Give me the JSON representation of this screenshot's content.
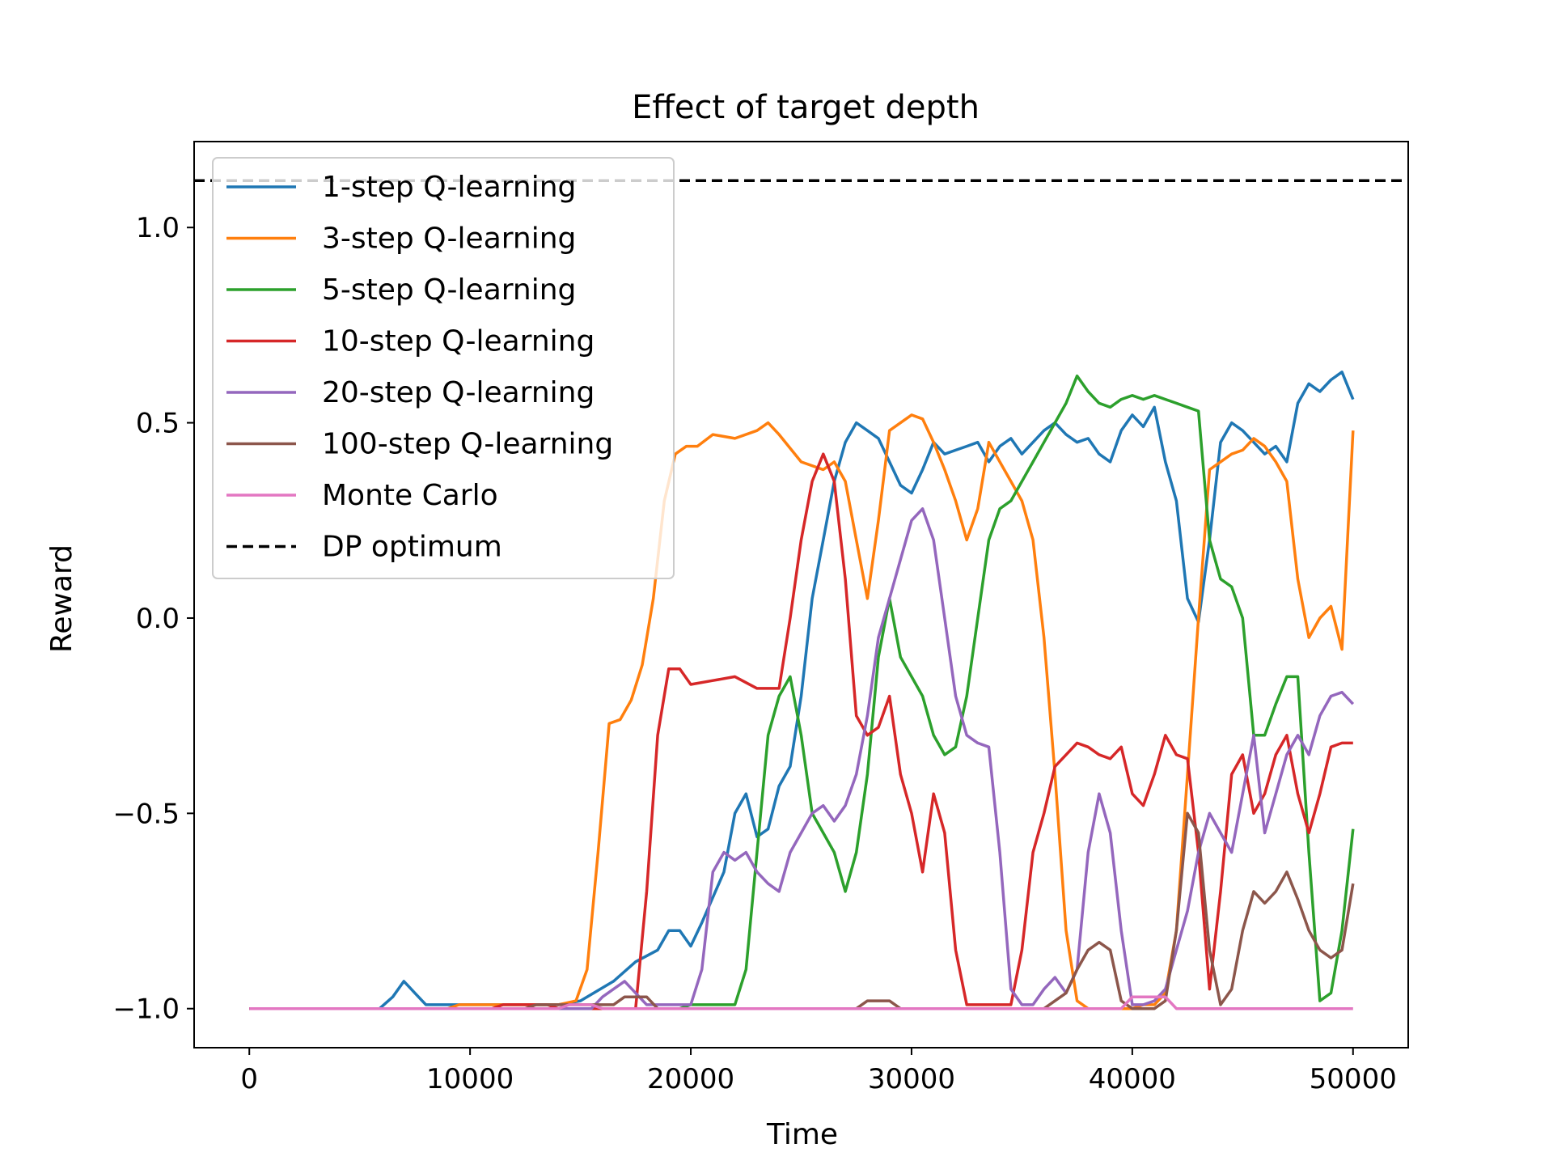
{
  "chart_data": {
    "type": "line",
    "title": "Effect of target depth",
    "xlabel": "Time",
    "ylabel": "Reward",
    "xlim": [
      -2500,
      52500
    ],
    "ylim": [
      -1.1,
      1.22
    ],
    "xticks": [
      0,
      10000,
      20000,
      30000,
      40000,
      50000
    ],
    "xtick_labels": [
      "0",
      "10000",
      "20000",
      "30000",
      "40000",
      "50000"
    ],
    "yticks": [
      -1.0,
      -0.5,
      0.0,
      0.5,
      1.0
    ],
    "ytick_labels": [
      "−1.0",
      "−0.5",
      "0.0",
      "0.5",
      "1.0"
    ],
    "grid": false,
    "legend_position": "top-left",
    "series": [
      {
        "name": "1-step Q-learning",
        "color": "#1f77b4",
        "style": "solid",
        "x": [
          0,
          5900,
          6500,
          7000,
          7500,
          8000,
          9000,
          9500,
          14000,
          15000,
          16500,
          17500,
          18500,
          19000,
          19500,
          20000,
          20500,
          21500,
          22000,
          22500,
          23000,
          23500,
          24000,
          24500,
          25000,
          25500,
          26000,
          26500,
          27000,
          27500,
          28000,
          28500,
          29000,
          29500,
          30000,
          30500,
          31000,
          31500,
          32000,
          32500,
          33000,
          33500,
          34000,
          34500,
          35000,
          35500,
          36000,
          36500,
          37000,
          37500,
          38000,
          38500,
          39000,
          39500,
          40000,
          40500,
          41000,
          41500,
          42000,
          42500,
          43000,
          43500,
          44000,
          44500,
          45000,
          45500,
          46000,
          46500,
          47000,
          47500,
          48000,
          48500,
          49000,
          49500,
          50000
        ],
        "y": [
          -1.0,
          -1.0,
          -0.97,
          -0.93,
          -0.96,
          -0.99,
          -0.99,
          -0.99,
          -0.99,
          -0.98,
          -0.93,
          -0.88,
          -0.85,
          -0.8,
          -0.8,
          -0.84,
          -0.78,
          -0.65,
          -0.5,
          -0.45,
          -0.56,
          -0.54,
          -0.43,
          -0.38,
          -0.2,
          0.05,
          0.2,
          0.35,
          0.45,
          0.5,
          0.48,
          0.46,
          0.4,
          0.34,
          0.32,
          0.38,
          0.45,
          0.42,
          0.43,
          0.44,
          0.45,
          0.4,
          0.44,
          0.46,
          0.42,
          0.45,
          0.48,
          0.5,
          0.47,
          0.45,
          0.46,
          0.42,
          0.4,
          0.48,
          0.52,
          0.49,
          0.54,
          0.4,
          0.3,
          0.05,
          -0.01,
          0.2,
          0.45,
          0.5,
          0.48,
          0.45,
          0.42,
          0.44,
          0.4,
          0.55,
          0.6,
          0.58,
          0.61,
          0.63,
          0.56
        ]
      },
      {
        "name": "3-step Q-learning",
        "color": "#ff7f0e",
        "style": "solid",
        "x": [
          0,
          9000,
          9500,
          14000,
          14800,
          15300,
          15800,
          16300,
          16800,
          17300,
          17800,
          18300,
          18800,
          19300,
          19800,
          20300,
          21000,
          22000,
          23000,
          23500,
          24000,
          25000,
          26000,
          26500,
          27000,
          27500,
          28000,
          28500,
          29000,
          29500,
          30000,
          30500,
          31000,
          31500,
          32000,
          32500,
          33000,
          33500,
          34000,
          34500,
          35000,
          35500,
          36000,
          36500,
          37000,
          37500,
          38000,
          39000,
          40000,
          40500,
          41000,
          41500,
          42000,
          42500,
          43000,
          43500,
          44000,
          44500,
          45000,
          45500,
          46000,
          46500,
          47000,
          47500,
          48000,
          48500,
          49000,
          49500,
          50000
        ],
        "y": [
          -1.0,
          -1.0,
          -0.99,
          -0.99,
          -0.98,
          -0.9,
          -0.6,
          -0.27,
          -0.26,
          -0.21,
          -0.12,
          0.05,
          0.3,
          0.42,
          0.44,
          0.44,
          0.47,
          0.46,
          0.48,
          0.5,
          0.47,
          0.4,
          0.38,
          0.4,
          0.35,
          0.2,
          0.05,
          0.25,
          0.48,
          0.5,
          0.52,
          0.51,
          0.45,
          0.38,
          0.3,
          0.2,
          0.28,
          0.45,
          0.4,
          0.35,
          0.3,
          0.2,
          -0.05,
          -0.4,
          -0.8,
          -0.98,
          -1.0,
          -1.0,
          -1.0,
          -0.99,
          -0.99,
          -0.96,
          -0.8,
          -0.4,
          0.0,
          0.38,
          0.4,
          0.42,
          0.43,
          0.46,
          0.44,
          0.4,
          0.35,
          0.1,
          -0.05,
          0.0,
          0.03,
          -0.08,
          0.48
        ]
      },
      {
        "name": "5-step Q-learning",
        "color": "#2ca02c",
        "style": "solid",
        "x": [
          0,
          19500,
          20000,
          21500,
          22000,
          22500,
          23000,
          23500,
          24000,
          24500,
          25000,
          25500,
          26000,
          26500,
          27000,
          27500,
          28000,
          28500,
          29000,
          29500,
          30000,
          30500,
          31000,
          31500,
          32000,
          32500,
          33000,
          33500,
          34000,
          34500,
          35000,
          35500,
          36000,
          36500,
          37000,
          37500,
          38000,
          38500,
          39000,
          39500,
          40000,
          40500,
          41000,
          41500,
          42000,
          42500,
          43000,
          43500,
          44000,
          44500,
          45000,
          45500,
          46000,
          46500,
          47000,
          47500,
          48000,
          48500,
          49000,
          49500,
          50000
        ],
        "y": [
          -1.0,
          -1.0,
          -0.99,
          -0.99,
          -0.99,
          -0.9,
          -0.6,
          -0.3,
          -0.2,
          -0.15,
          -0.3,
          -0.5,
          -0.55,
          -0.6,
          -0.7,
          -0.6,
          -0.4,
          -0.1,
          0.05,
          -0.1,
          -0.15,
          -0.2,
          -0.3,
          -0.35,
          -0.33,
          -0.2,
          0.0,
          0.2,
          0.28,
          0.3,
          0.35,
          0.4,
          0.45,
          0.5,
          0.55,
          0.62,
          0.58,
          0.55,
          0.54,
          0.56,
          0.57,
          0.56,
          0.57,
          0.56,
          0.55,
          0.54,
          0.53,
          0.2,
          0.1,
          0.08,
          0.0,
          -0.3,
          -0.3,
          -0.22,
          -0.15,
          -0.15,
          -0.6,
          -0.98,
          -0.96,
          -0.8,
          -0.54
        ]
      },
      {
        "name": "10-step Q-learning",
        "color": "#d62728",
        "style": "solid",
        "x": [
          0,
          11000,
          11500,
          13500,
          14000,
          17500,
          18000,
          18500,
          19000,
          19500,
          20000,
          21000,
          22000,
          23000,
          24000,
          24500,
          25000,
          25500,
          26000,
          26500,
          27000,
          27500,
          28000,
          28500,
          29000,
          29500,
          30000,
          30500,
          31000,
          31500,
          32000,
          32500,
          33000,
          34000,
          34500,
          35000,
          35500,
          36000,
          36500,
          37000,
          37500,
          38000,
          38500,
          39000,
          39500,
          40000,
          40500,
          41000,
          41500,
          42000,
          42500,
          43000,
          43500,
          44000,
          44500,
          45000,
          45500,
          46000,
          46500,
          47000,
          47500,
          48000,
          48500,
          49000,
          49500,
          50000
        ],
        "y": [
          -1.0,
          -1.0,
          -0.99,
          -0.99,
          -1.0,
          -1.0,
          -0.7,
          -0.3,
          -0.13,
          -0.13,
          -0.17,
          -0.16,
          -0.15,
          -0.18,
          -0.18,
          0.0,
          0.2,
          0.35,
          0.42,
          0.35,
          0.1,
          -0.25,
          -0.3,
          -0.28,
          -0.2,
          -0.4,
          -0.5,
          -0.65,
          -0.45,
          -0.55,
          -0.85,
          -0.99,
          -0.99,
          -0.99,
          -0.99,
          -0.85,
          -0.6,
          -0.5,
          -0.38,
          -0.35,
          -0.32,
          -0.33,
          -0.35,
          -0.36,
          -0.33,
          -0.45,
          -0.48,
          -0.4,
          -0.3,
          -0.35,
          -0.36,
          -0.6,
          -0.95,
          -0.7,
          -0.4,
          -0.35,
          -0.5,
          -0.45,
          -0.35,
          -0.3,
          -0.45,
          -0.55,
          -0.45,
          -0.33,
          -0.32,
          -0.32
        ]
      },
      {
        "name": "20-step Q-learning",
        "color": "#9467bd",
        "style": "solid",
        "x": [
          0,
          15500,
          16000,
          17000,
          17500,
          18000,
          18500,
          20000,
          20500,
          21000,
          21500,
          22000,
          22500,
          23000,
          23500,
          24000,
          24500,
          25000,
          25500,
          26000,
          26500,
          27000,
          27500,
          28000,
          28500,
          29000,
          29500,
          30000,
          30500,
          31000,
          31500,
          32000,
          32500,
          33000,
          33500,
          34000,
          34500,
          35000,
          35500,
          36000,
          36500,
          37000,
          37500,
          38000,
          38500,
          39000,
          39500,
          40000,
          40500,
          41000,
          41500,
          42000,
          42500,
          43000,
          43500,
          44000,
          44500,
          45000,
          45500,
          46000,
          46500,
          47000,
          47500,
          48000,
          48500,
          49000,
          49500,
          50000
        ],
        "y": [
          -1.0,
          -1.0,
          -0.97,
          -0.93,
          -0.96,
          -0.99,
          -0.99,
          -0.99,
          -0.9,
          -0.65,
          -0.6,
          -0.62,
          -0.6,
          -0.65,
          -0.68,
          -0.7,
          -0.6,
          -0.55,
          -0.5,
          -0.48,
          -0.52,
          -0.48,
          -0.4,
          -0.25,
          -0.05,
          0.05,
          0.15,
          0.25,
          0.28,
          0.2,
          0.0,
          -0.2,
          -0.3,
          -0.32,
          -0.33,
          -0.6,
          -0.95,
          -0.99,
          -0.99,
          -0.95,
          -0.92,
          -0.96,
          -0.9,
          -0.6,
          -0.45,
          -0.55,
          -0.8,
          -0.99,
          -0.99,
          -0.98,
          -0.95,
          -0.85,
          -0.75,
          -0.6,
          -0.5,
          -0.55,
          -0.6,
          -0.45,
          -0.3,
          -0.55,
          -0.45,
          -0.35,
          -0.3,
          -0.35,
          -0.25,
          -0.2,
          -0.19,
          -0.22
        ]
      },
      {
        "name": "100-step Q-learning",
        "color": "#8c564b",
        "style": "solid",
        "x": [
          0,
          12500,
          13000,
          16500,
          17000,
          17500,
          18000,
          18500,
          27500,
          28000,
          29000,
          29500,
          36000,
          36500,
          37000,
          37500,
          38000,
          38500,
          39000,
          39500,
          40000,
          40500,
          41000,
          41500,
          42000,
          42500,
          43000,
          43500,
          44000,
          44500,
          45000,
          45500,
          46000,
          46500,
          47000,
          47500,
          48000,
          48500,
          49000,
          49500,
          50000
        ],
        "y": [
          -1.0,
          -1.0,
          -0.99,
          -0.99,
          -0.97,
          -0.97,
          -0.97,
          -1.0,
          -1.0,
          -0.98,
          -0.98,
          -1.0,
          -1.0,
          -0.98,
          -0.96,
          -0.9,
          -0.85,
          -0.83,
          -0.85,
          -0.98,
          -1.0,
          -1.0,
          -1.0,
          -0.98,
          -0.8,
          -0.5,
          -0.55,
          -0.85,
          -0.99,
          -0.95,
          -0.8,
          -0.7,
          -0.73,
          -0.7,
          -0.65,
          -0.72,
          -0.8,
          -0.85,
          -0.87,
          -0.85,
          -0.68
        ]
      },
      {
        "name": "Monte Carlo",
        "color": "#e377c2",
        "style": "solid",
        "x": [
          0,
          14000,
          14500,
          15500,
          16000,
          39500,
          40000,
          41500,
          42000,
          50000
        ],
        "y": [
          -1.0,
          -1.0,
          -0.99,
          -0.99,
          -1.0,
          -1.0,
          -0.97,
          -0.97,
          -1.0,
          -1.0
        ]
      },
      {
        "name": "DP optimum",
        "color": "#000000",
        "style": "dashed",
        "x": [
          -2500,
          52500
        ],
        "y": [
          1.12,
          1.12
        ]
      }
    ]
  }
}
